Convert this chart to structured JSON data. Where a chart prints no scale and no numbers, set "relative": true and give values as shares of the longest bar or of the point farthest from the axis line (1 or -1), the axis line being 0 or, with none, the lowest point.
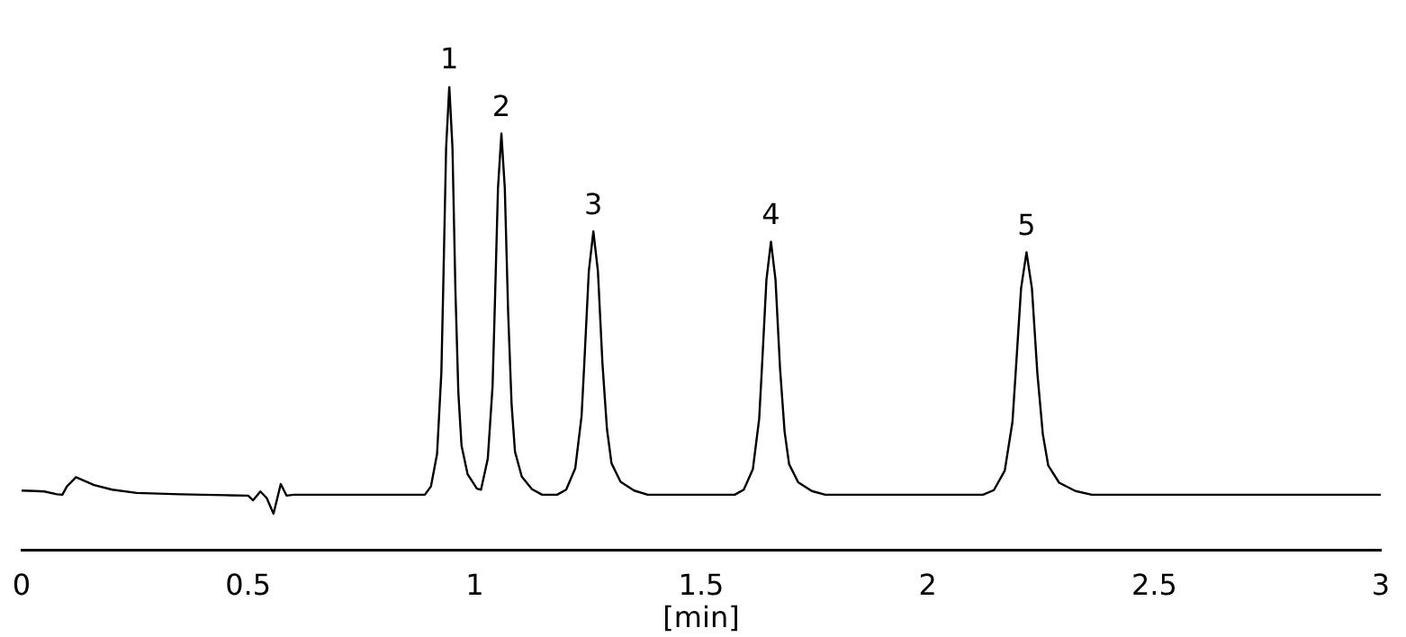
{
  "chart_data": {
    "type": "line",
    "relative": true,
    "xlabel": "[min]",
    "xlim": [
      0,
      3
    ],
    "xticks": [
      0,
      0.5,
      1,
      1.5,
      2,
      2.5,
      3
    ],
    "marker": "none",
    "line_style": "solid",
    "x": [
      0,
      0.03,
      0.05,
      0.078,
      0.09,
      0.1,
      0.12,
      0.16,
      0.2,
      0.254,
      0.35,
      0.45,
      0.5,
      0.511,
      0.527,
      0.541,
      0.556,
      0.572,
      0.585,
      0.6,
      0.75,
      0.89,
      0.9035,
      0.917,
      0.9265,
      0.9305,
      0.937,
      0.944,
      0.951,
      0.9575,
      0.964,
      0.971,
      0.9845,
      1.005,
      1.014,
      1.029,
      1.0395,
      1.044,
      1.0515,
      1.059,
      1.0665,
      1.074,
      1.0815,
      1.089,
      1.104,
      1.1265,
      1.149,
      1.182,
      1.202,
      1.222,
      1.236,
      1.242,
      1.252,
      1.262,
      1.272,
      1.282,
      1.292,
      1.302,
      1.322,
      1.352,
      1.382,
      1.574,
      1.594,
      1.614,
      1.628,
      1.634,
      1.644,
      1.654,
      1.664,
      1.674,
      1.684,
      1.694,
      1.714,
      1.744,
      1.774,
      2.122,
      2.146,
      2.17,
      2.187,
      2.194,
      2.206,
      2.218,
      2.23,
      2.242,
      2.254,
      2.266,
      2.29,
      2.326,
      2.362,
      3
    ],
    "series": [
      {
        "color": "#000000",
        "values": [
          0.128,
          0.127,
          0.126,
          0.12,
          0.119,
          0.137,
          0.157,
          0.14,
          0.13,
          0.123,
          0.12,
          0.118,
          0.117,
          0.107,
          0.126,
          0.112,
          0.078,
          0.142,
          0.117,
          0.119,
          0.119,
          0.119,
          0.137,
          0.207,
          0.383,
          0.56,
          0.868,
          1,
          0.868,
          0.56,
          0.339,
          0.225,
          0.163,
          0.132,
          0.13,
          0.197,
          0.353,
          0.509,
          0.781,
          0.898,
          0.781,
          0.509,
          0.314,
          0.212,
          0.158,
          0.131,
          0.119,
          0.119,
          0.13,
          0.176,
          0.289,
          0.403,
          0.602,
          0.687,
          0.602,
          0.403,
          0.261,
          0.187,
          0.147,
          0.128,
          0.119,
          0.119,
          0.13,
          0.174,
          0.283,
          0.392,
          0.583,
          0.665,
          0.583,
          0.392,
          0.256,
          0.185,
          0.146,
          0.127,
          0.119,
          0.119,
          0.129,
          0.171,
          0.276,
          0.381,
          0.564,
          0.642,
          0.564,
          0.381,
          0.25,
          0.182,
          0.145,
          0.127,
          0.119,
          0.119
        ]
      }
    ],
    "annotations": [
      {
        "text": "1",
        "x": 0.944,
        "y": 1
      },
      {
        "text": "2",
        "x": 1.059,
        "y": 0.898
      },
      {
        "text": "3",
        "x": 1.262,
        "y": 0.687
      },
      {
        "text": "4",
        "x": 1.654,
        "y": 0.665
      },
      {
        "text": "5",
        "x": 2.218,
        "y": 0.642
      }
    ]
  }
}
